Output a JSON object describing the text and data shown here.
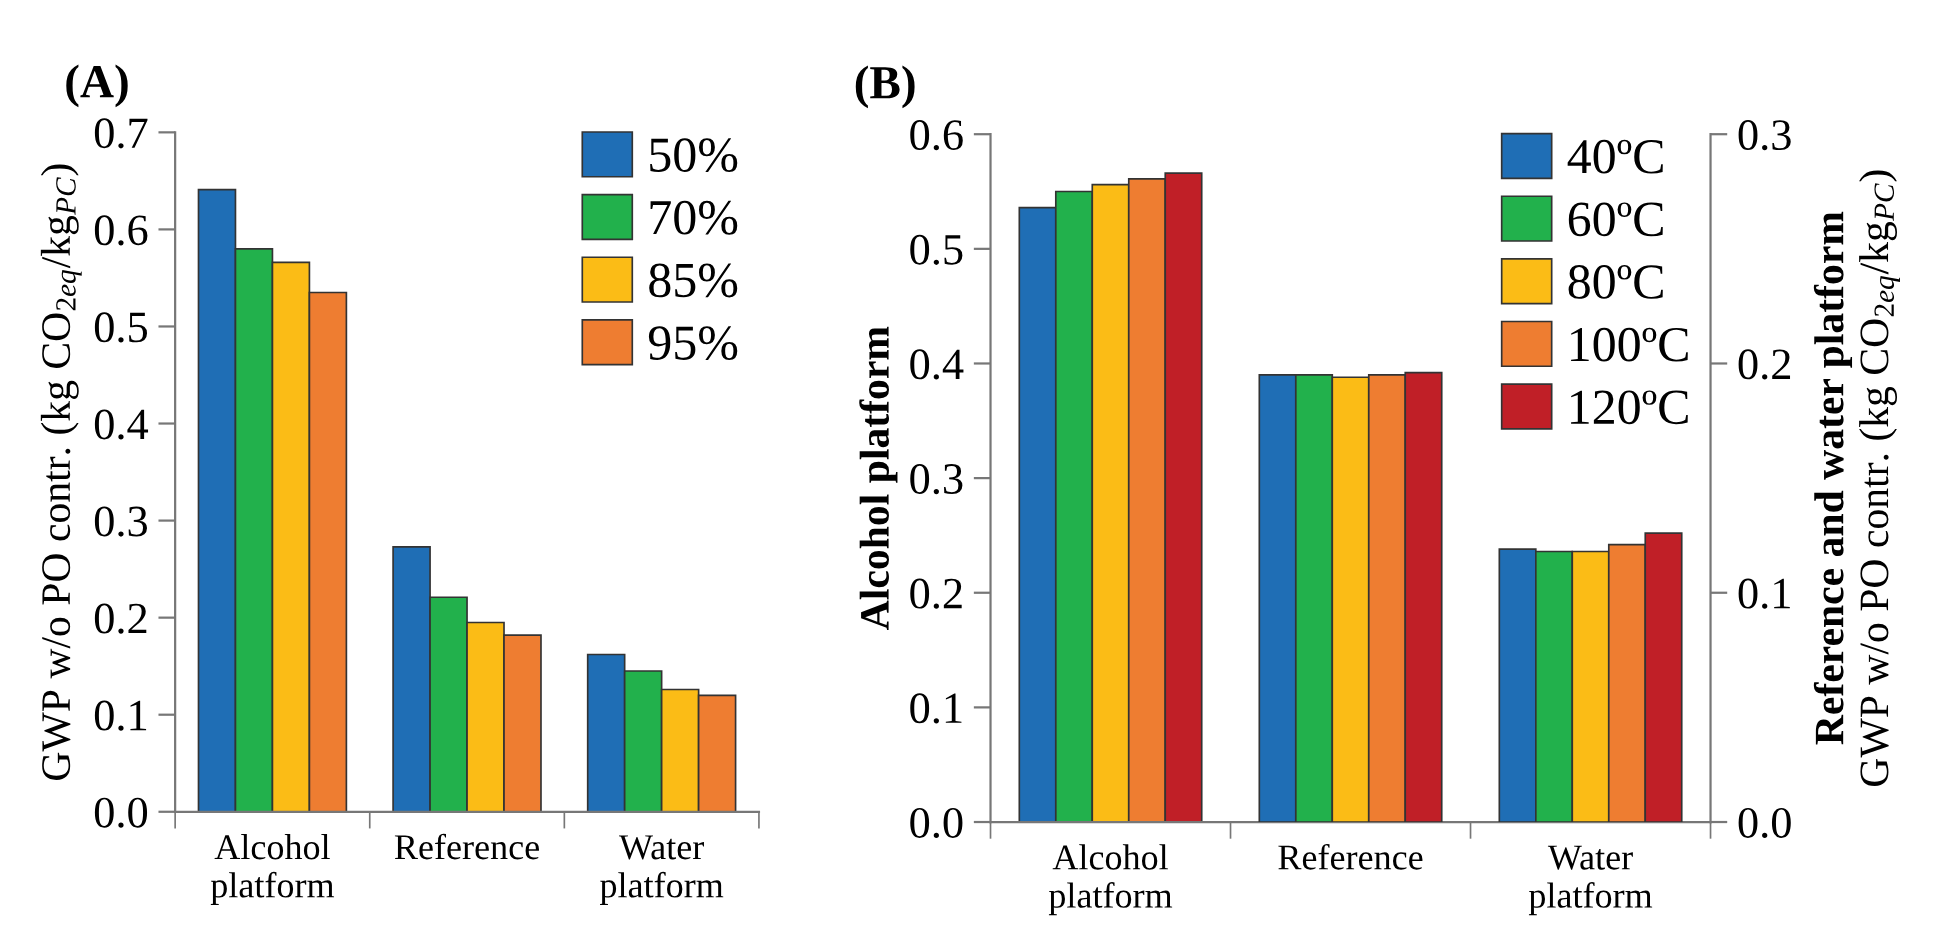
{
  "chart_data": [
    {
      "type": "bar",
      "title": "(A)",
      "ylabel": "GWP w/o PO contr. (kg CO$_{2eq}$/kg$_{PC}$)",
      "categories": [
        "Alcohol\nplatform",
        "Reference",
        "Water\nplatform"
      ],
      "ylim": [
        0,
        0.7
      ],
      "yticks": [
        {
          "value": 0,
          "label": "0.0"
        },
        0.1,
        0.2,
        0.3,
        0.4,
        0.5,
        0.6,
        0.7
      ],
      "legend": "top right",
      "grid": false,
      "series": [
        {
          "name": "50%",
          "color": "#1f6eb5",
          "values": [
            0.641,
            0.273,
            0.162
          ]
        },
        {
          "name": "70%",
          "color": "#22b14c",
          "values": [
            0.58,
            0.221,
            0.145
          ]
        },
        {
          "name": "85%",
          "color": "#fbbc16",
          "values": [
            0.566,
            0.195,
            0.126
          ]
        },
        {
          "name": "95%",
          "color": "#ee7d31",
          "values": [
            0.535,
            0.182,
            0.12
          ]
        }
      ]
    },
    {
      "type": "bar",
      "title": "(B)",
      "ylabel": "Alcohol platform",
      "y2label": "Reference and water platform\nGWP w/o PO contr. (kg CO$_{2eq}$/kg$_{PC}$)",
      "categories": [
        "Alcohol\nplatform",
        "Reference",
        "Water\nplatform"
      ],
      "ylim": [
        0,
        0.6
      ],
      "yticks": [
        {
          "value": 0,
          "label": "0.0"
        },
        0.1,
        0.2,
        0.3,
        0.4,
        0.5,
        0.6
      ],
      "y2lim": [
        0,
        0.3
      ],
      "y2ticks": [
        {
          "value": 0,
          "label": "0.0"
        },
        0.1,
        0.2,
        0.3
      ],
      "legend": "top right",
      "grid": false,
      "series": [
        {
          "name": "40ºC",
          "color": "#1f6eb5",
          "values": [
            0.536,
            null,
            null
          ]
        },
        {
          "name": "60ºC",
          "color": "#22b14c",
          "values": [
            0.55,
            null,
            null
          ]
        },
        {
          "name": "80ºC",
          "color": "#fbbc16",
          "values": [
            0.556,
            null,
            null
          ]
        },
        {
          "name": "100ºC",
          "color": "#ee7d31",
          "values": [
            0.561,
            null,
            null
          ]
        },
        {
          "name": "120ºC",
          "color": "#c01f27",
          "values": [
            0.566,
            null,
            null
          ]
        },
        {
          "color": "#1f6eb5",
          "axis": "y2",
          "values": [
            null,
            0.195,
            0.119
          ]
        },
        {
          "color": "#22b14c",
          "axis": "y2",
          "values": [
            null,
            0.195,
            0.118
          ]
        },
        {
          "color": "#fbbc16",
          "axis": "y2",
          "values": [
            null,
            0.194,
            0.118
          ]
        },
        {
          "color": "#ee7d31",
          "axis": "y2",
          "values": [
            null,
            0.195,
            0.121
          ]
        },
        {
          "color": "#c01f27",
          "axis": "y2",
          "values": [
            null,
            0.196,
            0.126
          ]
        }
      ]
    }
  ]
}
